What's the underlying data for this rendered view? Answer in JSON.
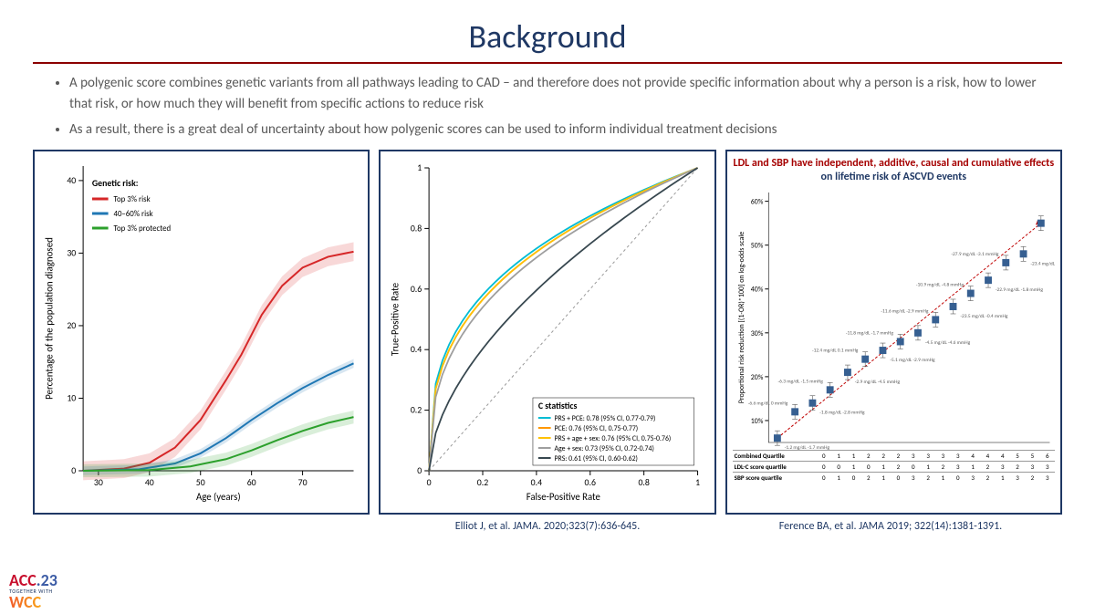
{
  "title": "Background",
  "bullets": [
    "A polygenic score combines genetic variants from all pathways leading to CAD – and therefore does not provide specific information about why a person is a risk, how to lower that risk, or how much they will benefit from specific actions to reduce risk",
    "As a result, there is a great deal of uncertainty about how polygenic scores can be used to inform individual treatment decisions"
  ],
  "citations": {
    "left": "",
    "middle": "Elliot J, et al. JAMA. 2020;323(7):636-645.",
    "right": "Ference BA, et al.  JAMA 2019; 322(14):1381-1391."
  },
  "logo": {
    "line1_a": "ACC",
    "line1_b": ".23",
    "line2": "TOGETHER WITH",
    "line3": "WCC"
  },
  "panel1": {
    "type": "line",
    "x_title": "Age (years)",
    "y_title": "Percentage of the population diagnosed",
    "legend_title": "Genetic risk:",
    "x_ticks": [
      30,
      40,
      50,
      60,
      70
    ],
    "y_ticks": [
      0,
      10,
      20,
      30,
      40
    ],
    "xlim": [
      27,
      80
    ],
    "ylim": [
      0,
      42
    ],
    "bg_color": "#ffffff",
    "series": [
      {
        "label": "Top 3% risk",
        "color": "#d62728",
        "points": [
          [
            27,
            0
          ],
          [
            35,
            0.3
          ],
          [
            40,
            1.1
          ],
          [
            45,
            3.2
          ],
          [
            50,
            7.0
          ],
          [
            55,
            12.5
          ],
          [
            58,
            16.0
          ],
          [
            62,
            21.5
          ],
          [
            66,
            25.5
          ],
          [
            70,
            28.0
          ],
          [
            75,
            29.5
          ],
          [
            80,
            30.2
          ]
        ],
        "band": 1.3
      },
      {
        "label": "40–60% risk",
        "color": "#1f77b4",
        "points": [
          [
            27,
            0
          ],
          [
            38,
            0.2
          ],
          [
            45,
            1.0
          ],
          [
            50,
            2.4
          ],
          [
            55,
            4.5
          ],
          [
            60,
            7.0
          ],
          [
            65,
            9.3
          ],
          [
            70,
            11.4
          ],
          [
            75,
            13.2
          ],
          [
            80,
            14.8
          ]
        ],
        "band": 0.6
      },
      {
        "label": "Top 3% protected",
        "color": "#2ca02c",
        "points": [
          [
            27,
            0
          ],
          [
            40,
            0.1
          ],
          [
            48,
            0.6
          ],
          [
            55,
            1.6
          ],
          [
            60,
            2.8
          ],
          [
            65,
            4.2
          ],
          [
            70,
            5.5
          ],
          [
            75,
            6.6
          ],
          [
            80,
            7.4
          ]
        ],
        "band": 0.9
      }
    ]
  },
  "panel2": {
    "type": "roc",
    "x_title": "False-Positive Rate",
    "y_title": "True-Positive Rate",
    "legend_title": "C statistics",
    "ticks": [
      0,
      0.2,
      0.4,
      0.6,
      0.8,
      1.0
    ],
    "xlim": [
      0,
      1
    ],
    "ylim": [
      0,
      1
    ],
    "diag_color": "#999999",
    "series": [
      {
        "label": "PRS + PCE: 0.78 (95% CI, 0.77-0.79)",
        "color": "#00bcd4",
        "auc": 0.78
      },
      {
        "label": "PCE: 0.76 (95% CI, 0.75-0.77)",
        "color": "#ff9800",
        "auc": 0.76
      },
      {
        "label": "PRS + age + sex: 0.76 (95% CI, 0.75-0.76)",
        "color": "#ffc107",
        "auc": 0.76
      },
      {
        "label": "Age + sex: 0.73 (95% CI, 0.72-0.74)",
        "color": "#9e9e9e",
        "auc": 0.73
      },
      {
        "label": "PRS: 0.61 (95% CI, 0.60-0.62)",
        "color": "#37474f",
        "auc": 0.61
      }
    ]
  },
  "panel3": {
    "headline_red": "LDL and SBP have independent, additive, causal and cumulative effects",
    "headline_blue": "on lifetime risk of ASCVD events",
    "y_title": "Proportional risk reduction [(1-OR)*100] on log-odds scale",
    "y_ticks": [
      10,
      20,
      30,
      40,
      50,
      60
    ],
    "ylim": [
      5,
      62
    ],
    "x_title": "Combined Quartile",
    "x_values": [
      0,
      1,
      1,
      2,
      2,
      2,
      3,
      3,
      3,
      3,
      4,
      4,
      4,
      5,
      5,
      6
    ],
    "y_values": [
      6,
      12,
      14,
      17,
      21,
      24,
      26,
      28,
      30,
      33,
      36,
      39,
      42,
      46,
      48,
      55
    ],
    "marker_color": "#365f91",
    "line_color": "#c00000",
    "point_labels": [
      "-1.2 mg/dL -1.7 mmHg",
      "-6.6 mg/dL 0 mmHg",
      "-1.8 mg/dL -2.8 mmHg",
      "-6.3 mg/dL -1.5 mmHg",
      "-2.9 mg/dL -4.5 mmHg",
      "-12.4 mg/dL 0.1 mmHg",
      "-5.1 mg/dL -2.9 mmHg",
      "-11.8 mg/dL -1.7 mmHg",
      "-4.5 mg/dL -4.6 mmHg",
      "-11.6 mg/dL -2.9 mmHg",
      "-23.5 mg/dL -0.4 mmHg",
      "-10.9 mg/dL -4.8 mmHg",
      "-22.9 mg/dL -1.8 mmHg",
      "-27.9 mg/dL -3.1 mmHg",
      "-23.4 mg/dL -5.0 mmHg",
      ""
    ],
    "table": {
      "rows": [
        {
          "label": "Combined Quartile",
          "cells": [
            0,
            1,
            1,
            2,
            2,
            2,
            3,
            3,
            3,
            3,
            4,
            4,
            4,
            5,
            5,
            6
          ]
        },
        {
          "label": "LDL-C score quartile",
          "cells": [
            0,
            0,
            1,
            0,
            1,
            2,
            0,
            1,
            2,
            3,
            1,
            2,
            3,
            2,
            3,
            3
          ]
        },
        {
          "label": "SBP score quartile",
          "cells": [
            0,
            1,
            0,
            2,
            1,
            0,
            3,
            2,
            1,
            0,
            3,
            2,
            1,
            3,
            2,
            3
          ]
        }
      ]
    }
  }
}
